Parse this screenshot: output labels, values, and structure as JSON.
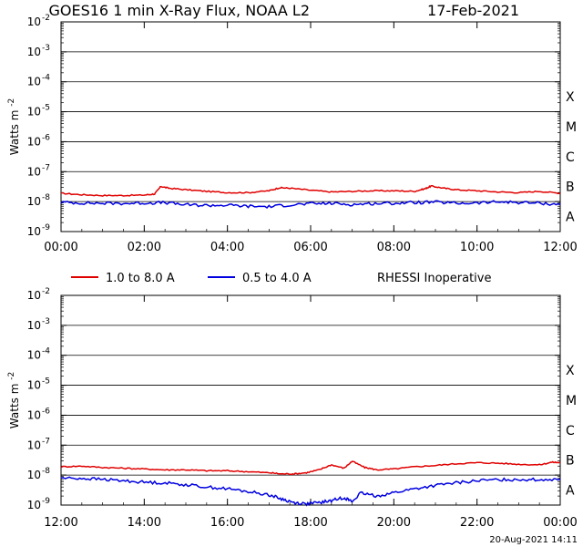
{
  "title": {
    "text": "GOES16 1 min X-Ray Flux, NOAA L2",
    "date": "17-Feb-2021"
  },
  "legend": {
    "items": [
      {
        "label": "1.0 to 8.0 A",
        "color": "#e00000"
      },
      {
        "label": "0.5 to 4.0 A",
        "color": "#0000e0"
      }
    ],
    "note": "RHESSI Inoperative"
  },
  "footer": {
    "timestamp": "20-Aug-2021 14:11"
  },
  "colors": {
    "long_channel": "#e00000",
    "short_channel": "#0000e0",
    "grid": "#000000"
  },
  "chart_data": [
    {
      "type": "line",
      "title": "GOES16 1 min X-Ray Flux, NOAA L2",
      "ylabel": "Watts m",
      "ylabel_sup": "-2",
      "yscale": "log",
      "ylim": [
        1e-09,
        0.01
      ],
      "y_ticks": [
        {
          "base": "10",
          "exp": "-2"
        },
        {
          "base": "10",
          "exp": "-3"
        },
        {
          "base": "10",
          "exp": "-4"
        },
        {
          "base": "10",
          "exp": "-5"
        },
        {
          "base": "10",
          "exp": "-6"
        },
        {
          "base": "10",
          "exp": "-7"
        },
        {
          "base": "10",
          "exp": "-8"
        },
        {
          "base": "10",
          "exp": "-9"
        }
      ],
      "flare_classes": [
        "X",
        "M",
        "C",
        "B",
        "A"
      ],
      "x_unit": "hour",
      "xlim": [
        0,
        12
      ],
      "x_ticks": [
        "00:00",
        "02:00",
        "04:00",
        "06:00",
        "08:00",
        "10:00",
        "12:00"
      ],
      "grid": true,
      "series": [
        {
          "name": "1.0 to 8.0 A",
          "color": "#e00000",
          "x": [
            0,
            0.5,
            1,
            1.5,
            2,
            2.25,
            2.4,
            2.6,
            3,
            3.5,
            4,
            4.5,
            5,
            5.25,
            5.5,
            6,
            6.5,
            7,
            7.5,
            8,
            8.5,
            8.75,
            8.9,
            9.2,
            9.5,
            10,
            10.5,
            11,
            11.5,
            12
          ],
          "values": [
            1.9e-08,
            1.7e-08,
            1.6e-08,
            1.6e-08,
            1.65e-08,
            1.8e-08,
            3.2e-08,
            2.8e-08,
            2.5e-08,
            2.2e-08,
            2e-08,
            2e-08,
            2.3e-08,
            2.9e-08,
            2.8e-08,
            2.4e-08,
            2.1e-08,
            2.2e-08,
            2.3e-08,
            2.3e-08,
            2.2e-08,
            2.7e-08,
            3.3e-08,
            2.8e-08,
            2.5e-08,
            2.3e-08,
            2.1e-08,
            2e-08,
            2.2e-08,
            1.9e-08
          ]
        },
        {
          "name": "0.5 to 4.0 A",
          "color": "#0000e0",
          "x": [
            0,
            0.5,
            1,
            1.5,
            2,
            2.5,
            3,
            3.5,
            4,
            4.5,
            5,
            5.5,
            6,
            6.5,
            7,
            7.5,
            8,
            8.5,
            9,
            9.5,
            10,
            10.5,
            11,
            11.5,
            12
          ],
          "values": [
            9.5e-09,
            9e-09,
            8.8e-09,
            8.7e-09,
            9e-09,
            9.2e-09,
            7.8e-09,
            7.5e-09,
            7.6e-09,
            7e-09,
            6.8e-09,
            7.8e-09,
            8.5e-09,
            8.8e-09,
            8e-09,
            8.6e-09,
            8.9e-09,
            9.3e-09,
            9.6e-09,
            8.8e-09,
            9e-09,
            9.8e-09,
            9.4e-09,
            8.9e-09,
            8e-09
          ]
        }
      ]
    },
    {
      "type": "line",
      "ylabel": "Watts m",
      "ylabel_sup": "-2",
      "yscale": "log",
      "ylim": [
        1e-09,
        0.01
      ],
      "y_ticks": [
        {
          "base": "10",
          "exp": "-2"
        },
        {
          "base": "10",
          "exp": "-3"
        },
        {
          "base": "10",
          "exp": "-4"
        },
        {
          "base": "10",
          "exp": "-5"
        },
        {
          "base": "10",
          "exp": "-6"
        },
        {
          "base": "10",
          "exp": "-7"
        },
        {
          "base": "10",
          "exp": "-8"
        },
        {
          "base": "10",
          "exp": "-9"
        }
      ],
      "flare_classes": [
        "X",
        "M",
        "C",
        "B",
        "A"
      ],
      "x_unit": "hour",
      "xlim": [
        12,
        24
      ],
      "x_ticks": [
        "12:00",
        "14:00",
        "16:00",
        "18:00",
        "20:00",
        "22:00",
        "00:00"
      ],
      "grid": true,
      "series": [
        {
          "name": "1.0 to 8.0 A",
          "color": "#e00000",
          "x": [
            12,
            12.5,
            13,
            13.5,
            14,
            14.5,
            15,
            15.5,
            16,
            16.5,
            17,
            17.3,
            17.6,
            17.9,
            18.2,
            18.5,
            18.8,
            19.0,
            19.3,
            19.6,
            20,
            20.5,
            21,
            21.5,
            22,
            22.5,
            23,
            23.5,
            23.8,
            24
          ],
          "values": [
            1.9e-08,
            2e-08,
            1.8e-08,
            1.7e-08,
            1.6e-08,
            1.5e-08,
            1.5e-08,
            1.4e-08,
            1.4e-08,
            1.3e-08,
            1.2e-08,
            1.1e-08,
            1.1e-08,
            1.2e-08,
            1.5e-08,
            2.2e-08,
            1.7e-08,
            2.9e-08,
            1.8e-08,
            1.5e-08,
            1.6e-08,
            1.9e-08,
            2.1e-08,
            2.4e-08,
            2.6e-08,
            2.5e-08,
            2.3e-08,
            2.2e-08,
            2.7e-08,
            2.6e-08
          ]
        },
        {
          "name": "0.5 to 4.0 A",
          "color": "#0000e0",
          "x": [
            12,
            12.5,
            13,
            13.5,
            14,
            14.5,
            15,
            15.5,
            16,
            16.5,
            17,
            17.3,
            17.6,
            17.9,
            18.2,
            18.5,
            18.8,
            19.0,
            19.2,
            19.6,
            20,
            20.5,
            21,
            21.5,
            22,
            22.5,
            23,
            23.5,
            24
          ],
          "values": [
            8e-09,
            7.8e-09,
            7.2e-09,
            6.5e-09,
            5.8e-09,
            5.5e-09,
            4.8e-09,
            4e-09,
            3.5e-09,
            2.8e-09,
            2.2e-09,
            1.6e-09,
            1.2e-09,
            1.1e-09,
            1.2e-09,
            1.4e-09,
            1.8e-09,
            1.3e-09,
            2.5e-09,
            2e-09,
            2.6e-09,
            3.5e-09,
            4.5e-09,
            5.5e-09,
            6.5e-09,
            7e-09,
            7.2e-09,
            7e-09,
            7.5e-09
          ]
        }
      ]
    }
  ]
}
